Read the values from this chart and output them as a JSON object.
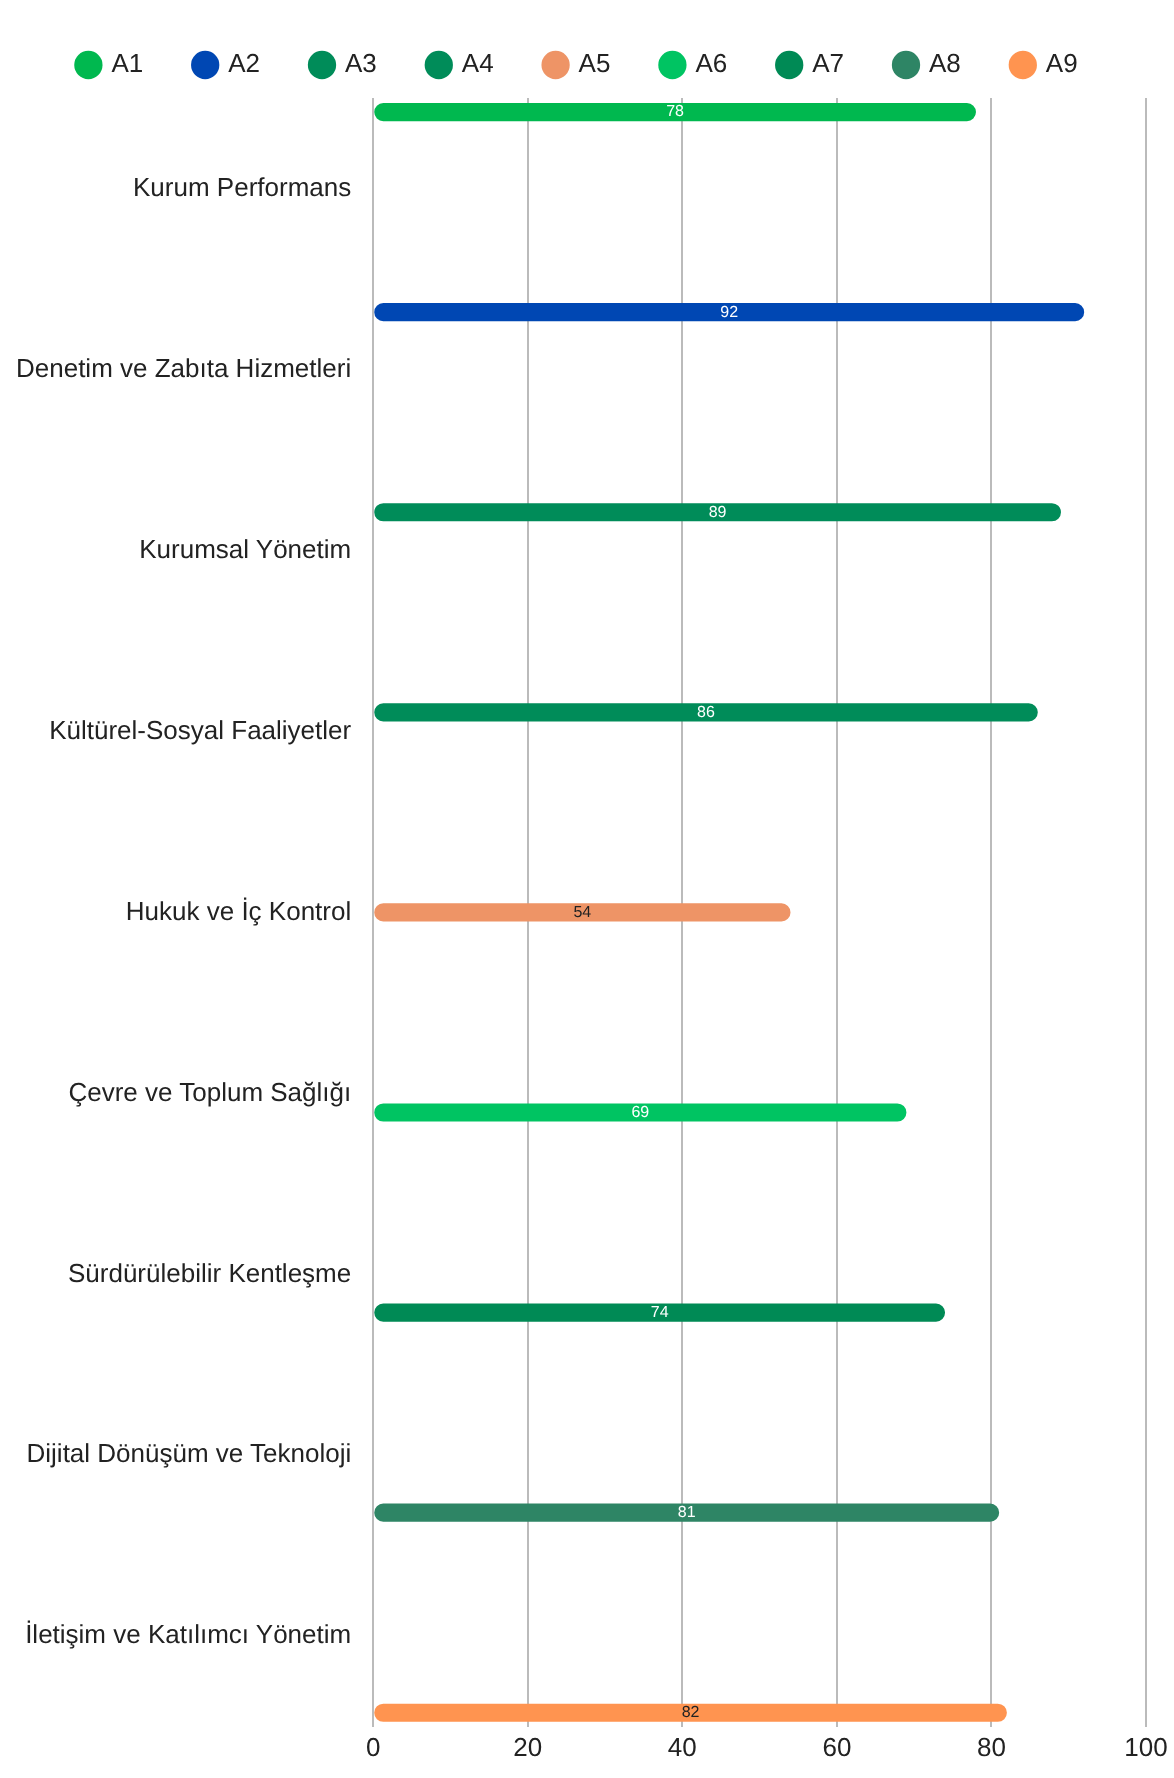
{
  "chart_data": {
    "type": "bar",
    "orientation": "horizontal",
    "categories": [
      "Kurum Performans",
      "Denetim ve Zabıta Hizmetleri",
      "Kurumsal Yönetim",
      "Kültürel-Sosyal Faaliyetler",
      "Hukuk ve İç Kontrol",
      "Çevre ve Toplum Sağlığı",
      "Sürdürülebilir Kentleşme",
      "Dijital Dönüşüm ve Teknoloji",
      "İletişim ve Katılımcı Yönetim"
    ],
    "series": [
      {
        "name": "A1",
        "color": "#00b84f",
        "values": [
          78,
          null,
          null,
          null,
          null,
          null,
          null,
          null,
          null
        ]
      },
      {
        "name": "A2",
        "color": "#0047b3",
        "values": [
          null,
          92,
          null,
          null,
          null,
          null,
          null,
          null,
          null
        ]
      },
      {
        "name": "A3",
        "color": "#008c59",
        "values": [
          null,
          null,
          89,
          null,
          null,
          null,
          null,
          null,
          null
        ]
      },
      {
        "name": "A4",
        "color": "#008c59",
        "values": [
          null,
          null,
          null,
          86,
          null,
          null,
          null,
          null,
          null
        ]
      },
      {
        "name": "A5",
        "color": "#ee9466",
        "values": [
          null,
          null,
          null,
          null,
          54,
          null,
          null,
          null,
          null
        ]
      },
      {
        "name": "A6",
        "color": "#00c462",
        "values": [
          null,
          null,
          null,
          null,
          null,
          69,
          null,
          null,
          null
        ]
      },
      {
        "name": "A7",
        "color": "#008a55",
        "values": [
          null,
          null,
          null,
          null,
          null,
          null,
          74,
          null,
          null
        ]
      },
      {
        "name": "A8",
        "color": "#2e8565",
        "values": [
          null,
          null,
          null,
          null,
          null,
          null,
          null,
          81,
          null
        ]
      },
      {
        "name": "A9",
        "color": "#ff9450",
        "values": [
          null,
          null,
          null,
          null,
          null,
          null,
          null,
          null,
          82
        ]
      }
    ],
    "xlim": [
      0,
      100
    ],
    "xticks": [
      0,
      20,
      40,
      60,
      80,
      100
    ],
    "grid": "x",
    "legend": "top",
    "data_labels": true
  }
}
